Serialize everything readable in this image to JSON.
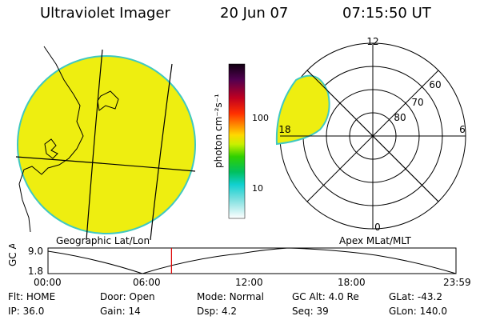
{
  "header": {
    "title": "Ultraviolet Imager",
    "date": "20 Jun 07",
    "time": "07:15:50 UT"
  },
  "colors": {
    "fill": "#eeee10",
    "edge": "#40c8c0",
    "marker": "#dd0000"
  },
  "geo_panel": {
    "label": "Geographic Lat/Lon"
  },
  "colorbar": {
    "unit_label": "photon cm⁻²s⁻¹",
    "ticks": [
      "100",
      "10"
    ]
  },
  "polar_panel": {
    "label": "Apex MLat/MLT",
    "mlt_labels": {
      "top": "12",
      "right": "6",
      "bottom": "0",
      "left": "18"
    },
    "lat_labels": [
      "60",
      "70",
      "80"
    ]
  },
  "timeline": {
    "axis_label": "GC Alt",
    "y_ticks": [
      "9.0",
      "1.8"
    ],
    "x_ticks": [
      "00:00",
      "06:00",
      "12:00",
      "18:00",
      "23:59"
    ],
    "current_time_hours": 7.264
  },
  "status": {
    "rows": [
      [
        {
          "label": "Flt:",
          "value": "HOME"
        },
        {
          "label": "Door:",
          "value": "Open"
        },
        {
          "label": "Mode:",
          "value": "Normal"
        },
        {
          "label": "GC Alt:",
          "value": "4.0 Re"
        },
        {
          "label": "GLat:",
          "value": "-43.2"
        }
      ],
      [
        {
          "label": "IP:",
          "value": "36.0"
        },
        {
          "label": "Gain:",
          "value": "14"
        },
        {
          "label": "Dsp:",
          "value": "4.2"
        },
        {
          "label": "Seq:",
          "value": "39"
        },
        {
          "label": "GLon:",
          "value": "140.0"
        }
      ]
    ]
  }
}
